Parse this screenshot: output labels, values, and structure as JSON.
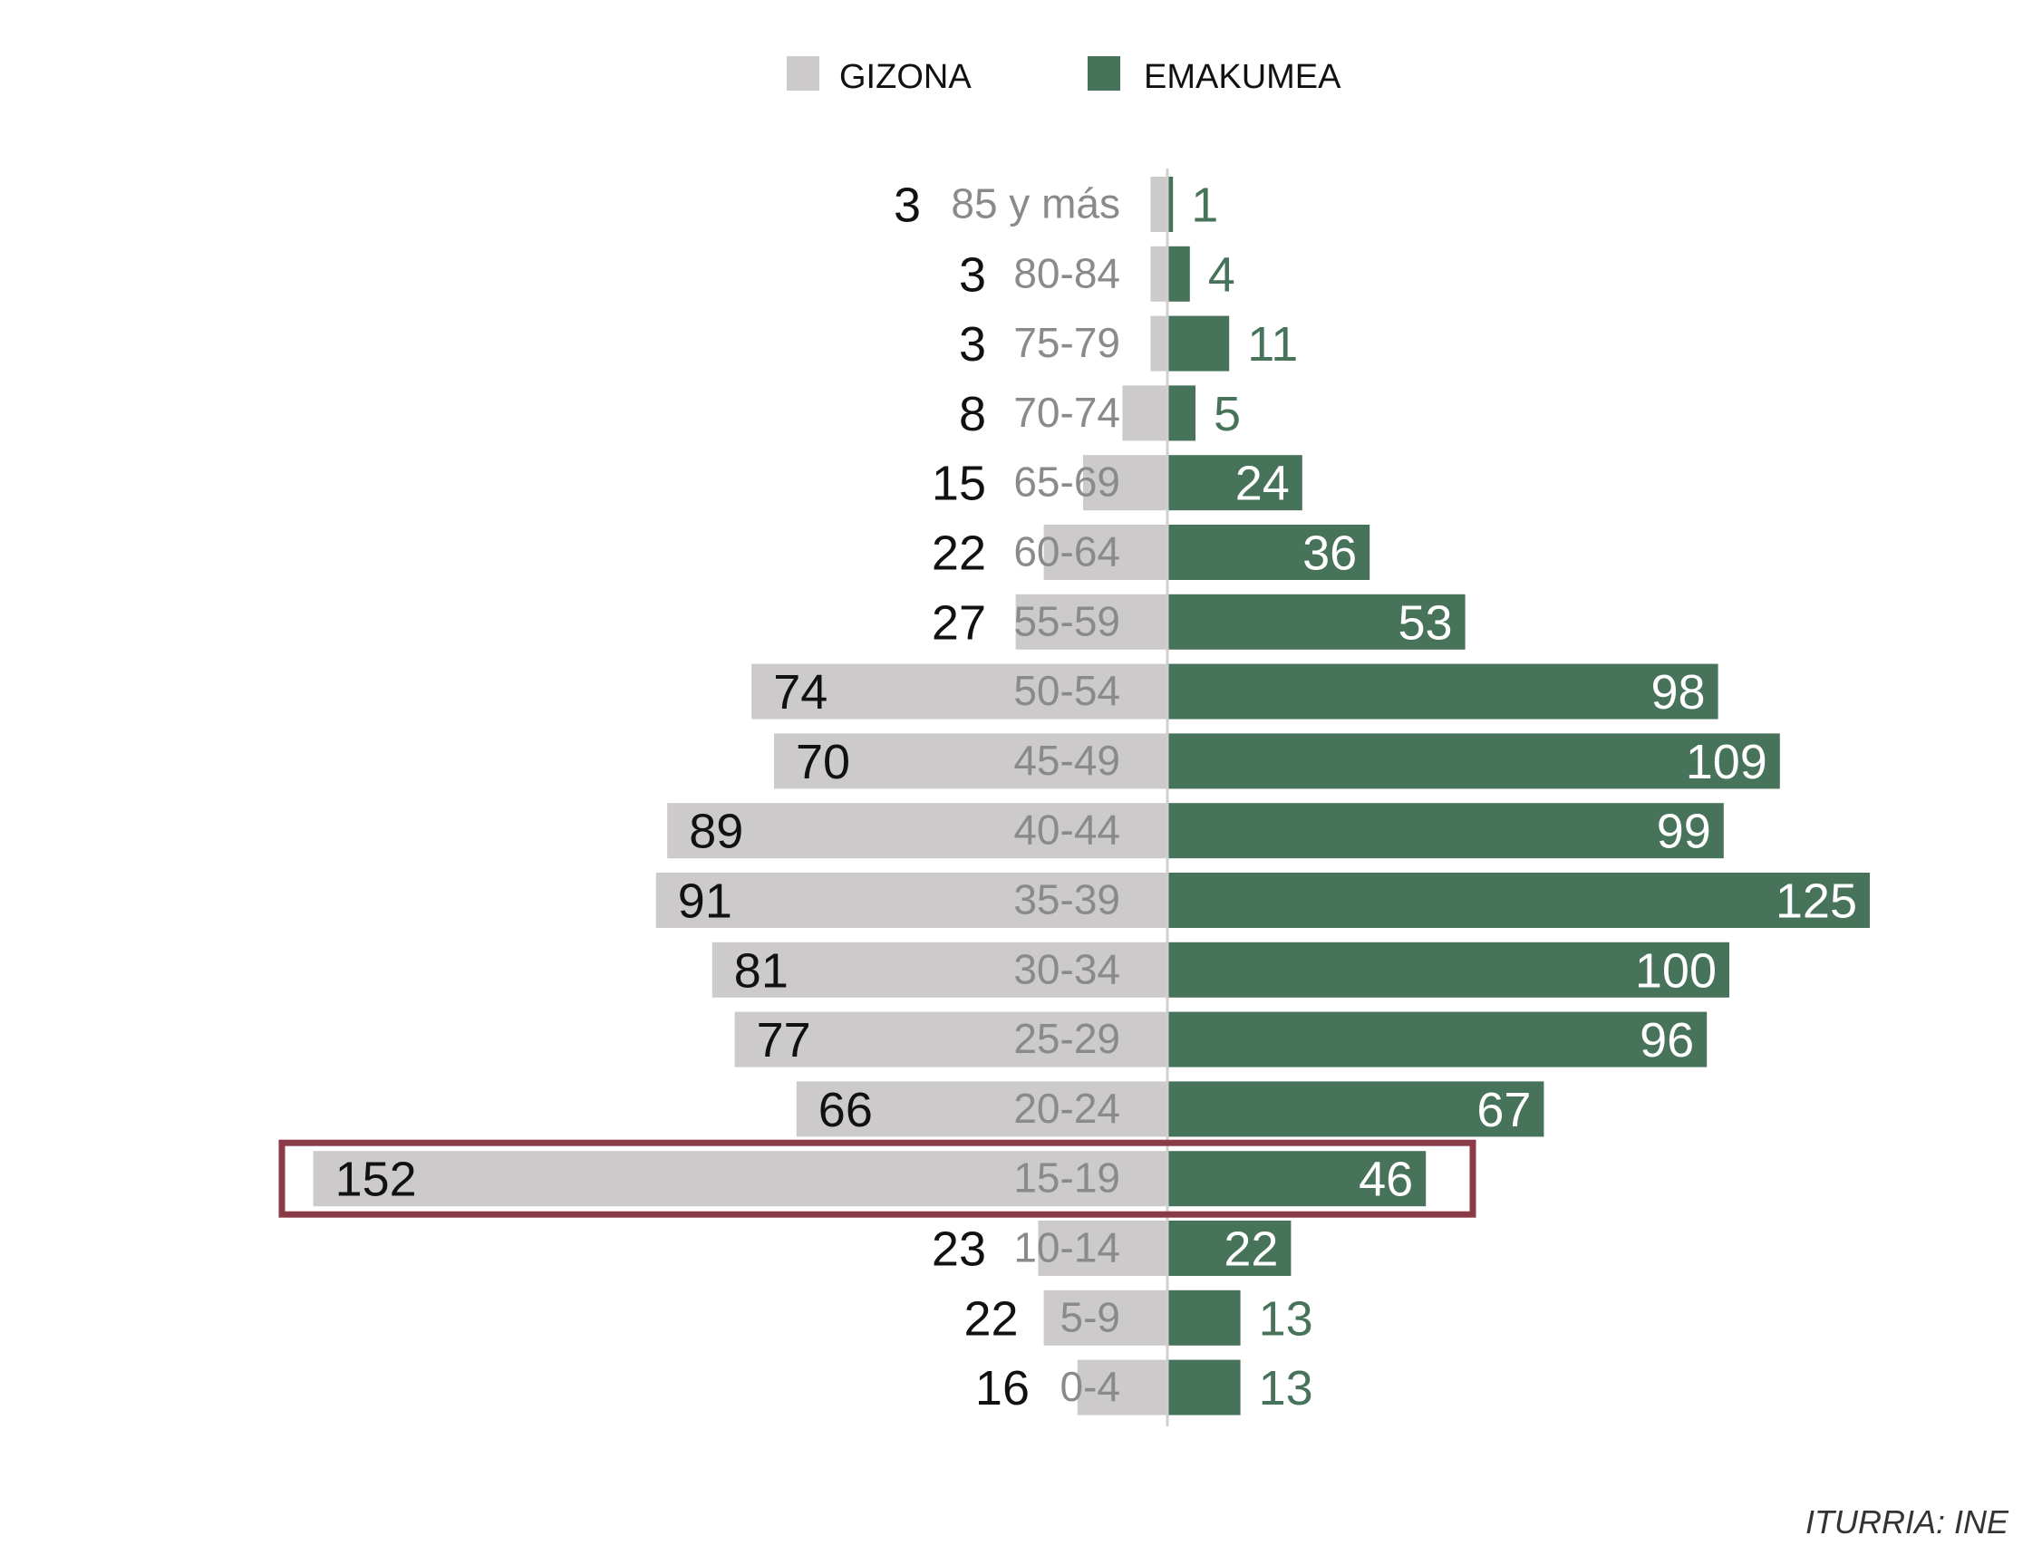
{
  "chart_data": {
    "type": "bar",
    "orientation": "horizontal",
    "layout": "population-pyramid",
    "categories": [
      "85 y más",
      "80-84",
      "75-79",
      "70-74",
      "65-69",
      "60-64",
      "55-59",
      "50-54",
      "45-49",
      "40-44",
      "35-39",
      "30-34",
      "25-29",
      "20-24",
      "15-19",
      "10-14",
      "5-9",
      "0-4"
    ],
    "series": [
      {
        "name": "GIZONA",
        "color": "#cccacb",
        "side": "left",
        "values": [
          3,
          3,
          3,
          8,
          15,
          22,
          27,
          74,
          70,
          89,
          91,
          81,
          77,
          66,
          152,
          23,
          22,
          16
        ]
      },
      {
        "name": "EMAKUMEA",
        "color": "#46735a",
        "side": "right",
        "values": [
          1,
          4,
          11,
          5,
          24,
          36,
          53,
          98,
          109,
          99,
          125,
          100,
          96,
          67,
          46,
          22,
          13,
          13
        ]
      }
    ],
    "highlight": {
      "category": "15-19",
      "color": "#8b3a47"
    },
    "legend_position": "top-center",
    "grid": false
  },
  "source": "ITURRIA: INE"
}
